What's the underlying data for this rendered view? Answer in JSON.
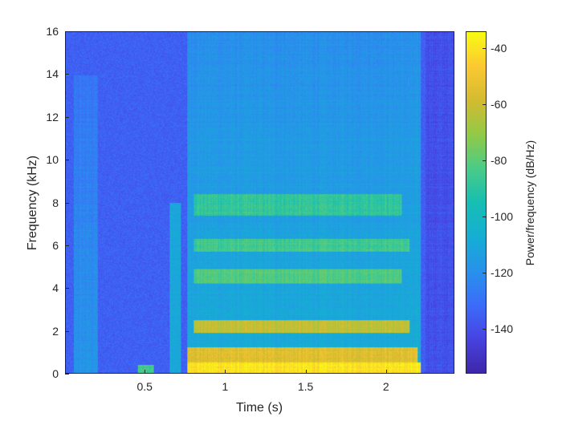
{
  "chart_data": {
    "type": "heatmap",
    "title": "",
    "xlabel": "Time (s)",
    "ylabel": "Frequency (kHz)",
    "colorbar_label": "Power/frequency (dB/Hz)",
    "colormap": "parula",
    "xlim": [
      0.005,
      2.425
    ],
    "ylim": [
      0,
      16
    ],
    "clim": [
      -156,
      -34
    ],
    "xticks": [
      0.5,
      1,
      1.5,
      2
    ],
    "xtick_labels": [
      "0.5",
      "1",
      "1.5",
      "2"
    ],
    "yticks": [
      0,
      2,
      4,
      6,
      8,
      10,
      12,
      14,
      16
    ],
    "ytick_labels": [
      "0",
      "2",
      "4",
      "6",
      "8",
      "10",
      "12",
      "14",
      "16"
    ],
    "colorbar_ticks": [
      -40,
      -60,
      -80,
      -100,
      -120,
      -140
    ],
    "colorbar_tick_labels": [
      "-40",
      "-60",
      "-80",
      "-100",
      "-120",
      "-140"
    ],
    "grid": false,
    "background_level_db": -135,
    "regions": [
      {
        "desc": "speech onset faint energy",
        "t": [
          0.05,
          0.2
        ],
        "f": [
          0,
          14
        ],
        "db": -118
      },
      {
        "desc": "low-frequency burst",
        "t": [
          0.45,
          0.55
        ],
        "f": [
          0,
          0.4
        ],
        "db": -85
      },
      {
        "desc": "transient around 0.68s",
        "t": [
          0.65,
          0.72
        ],
        "f": [
          0,
          8
        ],
        "db": -110
      },
      {
        "desc": "main voiced segment",
        "t": [
          0.76,
          2.22
        ],
        "f": [
          0,
          16
        ],
        "db": -108
      },
      {
        "desc": "formant band ~0.5 kHz",
        "t": [
          0.76,
          2.22
        ],
        "f": [
          0,
          0.5
        ],
        "db": -40
      },
      {
        "desc": "formant band ~1 kHz",
        "t": [
          0.76,
          2.2
        ],
        "f": [
          0.5,
          1.2
        ],
        "db": -55
      },
      {
        "desc": "formant band ~2.2 kHz",
        "t": [
          0.8,
          2.15
        ],
        "f": [
          1.9,
          2.5
        ],
        "db": -62
      },
      {
        "desc": "formant band ~4.5 kHz",
        "t": [
          0.8,
          2.1
        ],
        "f": [
          4.2,
          4.9
        ],
        "db": -82
      },
      {
        "desc": "formant band ~6 kHz",
        "t": [
          0.8,
          2.15
        ],
        "f": [
          5.7,
          6.3
        ],
        "db": -85
      },
      {
        "desc": "formant band ~8 kHz",
        "t": [
          0.8,
          2.1
        ],
        "f": [
          7.4,
          8.4
        ],
        "db": -88
      },
      {
        "desc": "trailing silence",
        "t": [
          2.25,
          2.425
        ],
        "f": [
          0,
          16
        ],
        "db": -140
      }
    ]
  }
}
